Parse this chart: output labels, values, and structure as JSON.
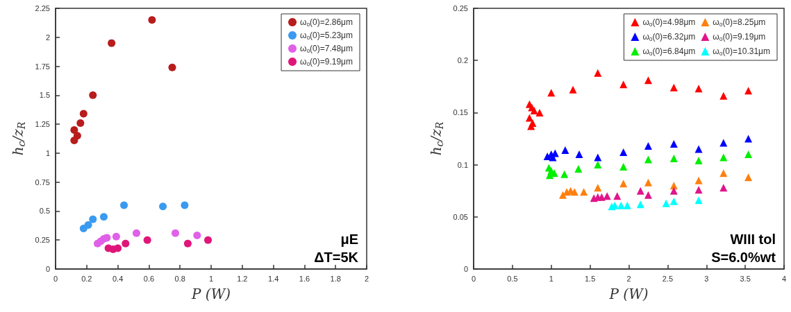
{
  "chart_data": [
    {
      "type": "scatter",
      "xlabel": "P (W)",
      "ylabel": "h$_{c}$/z$_{R}$",
      "xlim": [
        0,
        2
      ],
      "xticks": [
        0,
        0.2,
        0.4,
        0.6,
        0.8,
        1,
        1.2,
        1.4,
        1.6,
        1.8,
        2
      ],
      "ylim": [
        0,
        2.25
      ],
      "yticks": [
        0,
        0.25,
        0.5,
        0.75,
        1,
        1.25,
        1.5,
        1.75,
        2,
        2.25
      ],
      "marker": "circle",
      "legend": "top right",
      "annotations": [
        "μE",
        "ΔT=5K"
      ],
      "series": [
        {
          "name": "ω$_{o}$(0)=2.86μm",
          "color": "#b81c1c",
          "x": [
            0.12,
            0.12,
            0.14,
            0.16,
            0.18,
            0.24,
            0.36,
            0.62,
            0.75
          ],
          "values": [
            1.2,
            1.11,
            1.15,
            1.26,
            1.34,
            1.5,
            1.95,
            2.15,
            1.74
          ]
        },
        {
          "name": "ω$_{o}$(0)=5.23μm",
          "color": "#3a9af0",
          "x": [
            0.18,
            0.21,
            0.24,
            0.31,
            0.44,
            0.69,
            0.83
          ],
          "values": [
            0.35,
            0.38,
            0.43,
            0.45,
            0.55,
            0.54,
            0.55
          ]
        },
        {
          "name": "ω$_{o}$(0)=7.48μm",
          "color": "#e060e8",
          "x": [
            0.27,
            0.29,
            0.31,
            0.33,
            0.39,
            0.52,
            0.77,
            0.91
          ],
          "values": [
            0.22,
            0.24,
            0.26,
            0.27,
            0.28,
            0.31,
            0.31,
            0.29
          ]
        },
        {
          "name": "ω$_{o}$(0)=9.19μm",
          "color": "#e0157a",
          "x": [
            0.34,
            0.37,
            0.4,
            0.45,
            0.59,
            0.85,
            0.98
          ],
          "values": [
            0.18,
            0.17,
            0.18,
            0.22,
            0.25,
            0.22,
            0.25
          ]
        }
      ]
    },
    {
      "type": "scatter",
      "xlabel": "P (W)",
      "ylabel": "h$_{c}$/z$_{R}$",
      "xlim": [
        0,
        4
      ],
      "xticks": [
        0,
        0.5,
        1,
        1.5,
        2,
        2.5,
        3,
        3.5,
        4
      ],
      "ylim": [
        0,
        0.25
      ],
      "yticks": [
        0,
        0.05,
        0.1,
        0.15,
        0.2,
        0.25
      ],
      "marker": "triangle",
      "legend": "top right",
      "annotations": [
        "WIII tol",
        "S=6.0%wt"
      ],
      "series": [
        {
          "name": "ω$_{o}$(0)=4.98μm",
          "color": "#ff0000",
          "x": [
            0.72,
            0.75,
            0.78,
            0.72,
            0.76,
            0.74,
            0.85,
            1.0,
            1.28,
            1.6,
            1.93,
            2.25,
            2.58,
            2.9,
            3.22,
            3.54
          ],
          "values": [
            0.158,
            0.155,
            0.152,
            0.145,
            0.14,
            0.137,
            0.15,
            0.169,
            0.172,
            0.188,
            0.177,
            0.181,
            0.174,
            0.173,
            0.166,
            0.171
          ]
        },
        {
          "name": "ω$_{o}$(0)=6.32μm",
          "color": "#0000ff",
          "x": [
            0.95,
            1.0,
            1.02,
            1.05,
            1.18,
            1.36,
            1.6,
            1.93,
            2.25,
            2.58,
            2.9,
            3.22,
            3.54
          ],
          "values": [
            0.108,
            0.11,
            0.107,
            0.111,
            0.114,
            0.11,
            0.107,
            0.112,
            0.118,
            0.12,
            0.115,
            0.121,
            0.125
          ]
        },
        {
          "name": "ω$_{o}$(0)=6.84μm",
          "color": "#00ee00",
          "x": [
            0.97,
            0.98,
            1.0,
            1.04,
            1.17,
            1.35,
            1.6,
            1.93,
            2.25,
            2.58,
            2.9,
            3.22,
            3.54
          ],
          "values": [
            0.097,
            0.09,
            0.094,
            0.092,
            0.091,
            0.096,
            0.1,
            0.098,
            0.105,
            0.106,
            0.104,
            0.107,
            0.11
          ]
        },
        {
          "name": "ω$_{o}$(0)=8.25μm",
          "color": "#ff7f0e",
          "x": [
            1.15,
            1.2,
            1.25,
            1.3,
            1.42,
            1.6,
            1.93,
            2.25,
            2.58,
            2.9,
            3.22,
            3.54
          ],
          "values": [
            0.071,
            0.074,
            0.075,
            0.074,
            0.074,
            0.078,
            0.082,
            0.083,
            0.08,
            0.085,
            0.092,
            0.088
          ]
        },
        {
          "name": "ω$_{o}$(0)=9.19μm",
          "color": "#e0158a",
          "x": [
            1.55,
            1.6,
            1.65,
            1.72,
            1.85,
            2.15,
            2.25,
            2.58,
            2.9,
            3.22
          ],
          "values": [
            0.068,
            0.069,
            0.069,
            0.07,
            0.07,
            0.075,
            0.071,
            0.075,
            0.076,
            0.078
          ]
        },
        {
          "name": "ω$_{o}$(0)=10.31μm",
          "color": "#00ffff",
          "x": [
            1.78,
            1.82,
            1.9,
            1.98,
            2.15,
            2.48,
            2.58,
            2.9
          ],
          "values": [
            0.06,
            0.061,
            0.061,
            0.061,
            0.062,
            0.063,
            0.065,
            0.066
          ]
        }
      ]
    }
  ]
}
